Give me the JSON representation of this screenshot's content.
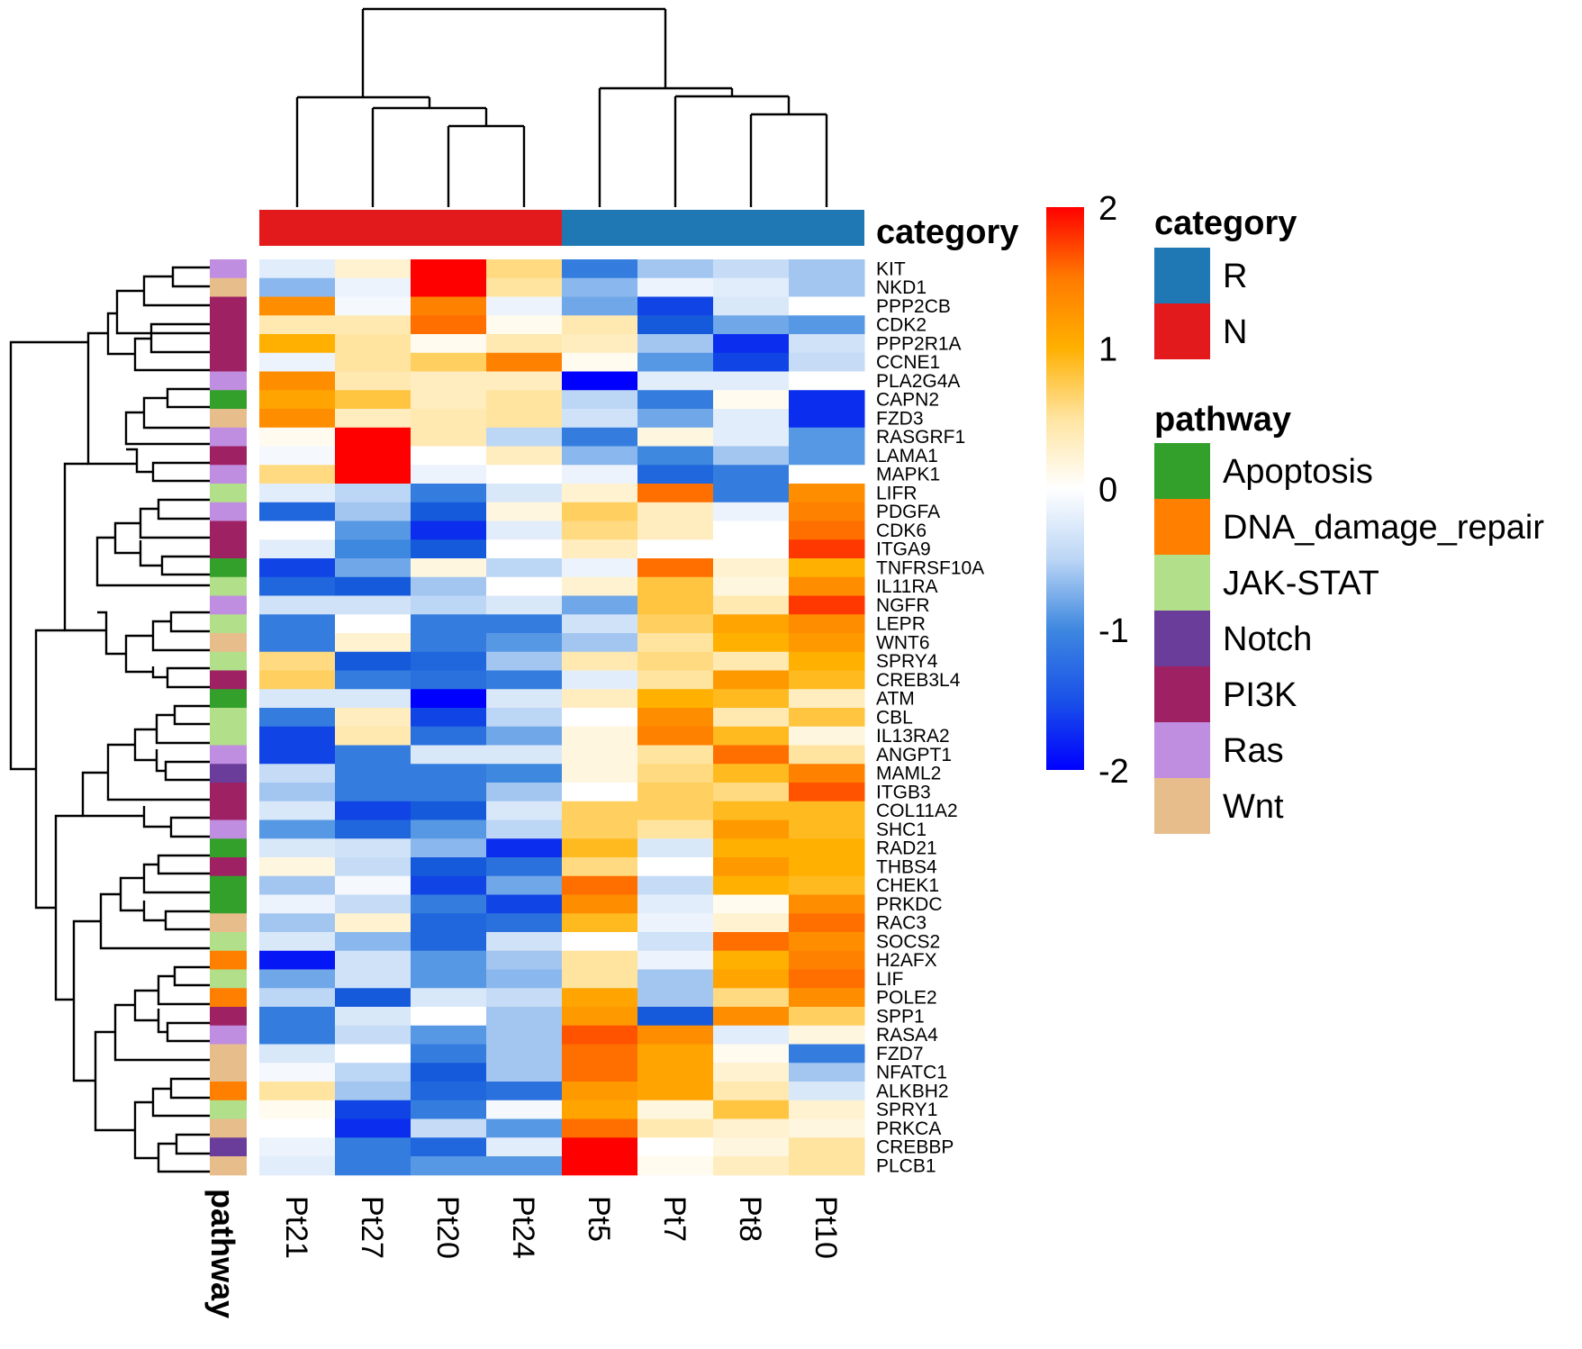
{
  "chart_data": {
    "type": "heatmap",
    "columns": [
      "Pt21",
      "Pt27",
      "Pt20",
      "Pt24",
      "Pt5",
      "Pt7",
      "Pt8",
      "Pt10"
    ],
    "column_categories": [
      "N",
      "N",
      "N",
      "N",
      "R",
      "R",
      "R",
      "R"
    ],
    "rows": [
      "KIT",
      "NKD1",
      "PPP2CB",
      "CDK2",
      "PPP2R1A",
      "CCNE1",
      "PLA2G4A",
      "CAPN2",
      "FZD3",
      "RASGRF1",
      "LAMA1",
      "MAPK1",
      "LIFR",
      "PDGFA",
      "CDK6",
      "ITGA9",
      "TNFRSF10A",
      "IL11RA",
      "NGFR",
      "LEPR",
      "WNT6",
      "SPRY4",
      "CREB3L4",
      "ATM",
      "CBL",
      "IL13RA2",
      "ANGPT1",
      "MAML2",
      "ITGB3",
      "COL11A2",
      "SHC1",
      "RAD21",
      "THBS4",
      "CHEK1",
      "PRKDC",
      "RAC3",
      "SOCS2",
      "H2AFX",
      "LIF",
      "POLE2",
      "SPP1",
      "RASA4",
      "FZD7",
      "NFATC1",
      "ALKBH2",
      "SPRY1",
      "PRKCA",
      "CREBBP",
      "PLCB1"
    ],
    "row_pathways": [
      "Ras",
      "Wnt",
      "PI3K",
      "PI3K",
      "PI3K",
      "PI3K",
      "Ras",
      "Apoptosis",
      "Wnt",
      "Ras",
      "PI3K",
      "Ras",
      "JAK-STAT",
      "Ras",
      "PI3K",
      "PI3K",
      "Apoptosis",
      "JAK-STAT",
      "Ras",
      "JAK-STAT",
      "Wnt",
      "JAK-STAT",
      "PI3K",
      "Apoptosis",
      "JAK-STAT",
      "JAK-STAT",
      "Ras",
      "Notch",
      "PI3K",
      "PI3K",
      "Ras",
      "Apoptosis",
      "PI3K",
      "Apoptosis",
      "Apoptosis",
      "Wnt",
      "JAK-STAT",
      "DNA_damage_repair",
      "JAK-STAT",
      "DNA_damage_repair",
      "PI3K",
      "Ras",
      "Wnt",
      "Wnt",
      "DNA_damage_repair",
      "JAK-STAT",
      "Wnt",
      "Notch",
      "Wnt"
    ],
    "values": [
      [
        -0.3,
        0.3,
        2.0,
        0.7,
        -1.3,
        -0.8,
        -0.6,
        -0.8
      ],
      [
        -0.9,
        -0.2,
        2.0,
        0.6,
        -0.9,
        -0.2,
        -0.3,
        -0.8
      ],
      [
        1.4,
        -0.1,
        1.5,
        -0.2,
        -1.0,
        -1.7,
        -0.4,
        0.0
      ],
      [
        0.5,
        0.5,
        1.6,
        0.1,
        0.5,
        -1.6,
        -1.0,
        -1.1
      ],
      [
        1.1,
        0.6,
        0.1,
        0.5,
        0.4,
        -0.8,
        -1.8,
        -0.5
      ],
      [
        -0.2,
        0.6,
        0.8,
        1.5,
        0.1,
        -1.1,
        -1.7,
        -0.6
      ],
      [
        1.4,
        0.5,
        0.4,
        0.4,
        -2.0,
        -0.3,
        -0.3,
        0.0
      ],
      [
        1.2,
        0.9,
        0.4,
        0.6,
        -0.7,
        -1.3,
        0.1,
        -1.8
      ],
      [
        1.4,
        0.4,
        0.5,
        0.6,
        -0.5,
        -1.0,
        -0.3,
        -1.8
      ],
      [
        0.1,
        2.0,
        0.5,
        -0.7,
        -1.3,
        0.2,
        -0.3,
        -1.1
      ],
      [
        -0.1,
        2.0,
        0.0,
        0.4,
        -0.9,
        -1.2,
        -0.8,
        -1.1
      ],
      [
        0.7,
        2.0,
        -0.2,
        0.0,
        -0.2,
        -1.5,
        -1.3,
        0.0
      ],
      [
        -0.3,
        -0.7,
        -1.3,
        -0.4,
        0.3,
        1.6,
        -1.3,
        1.4
      ],
      [
        -1.5,
        -0.8,
        -1.6,
        0.2,
        0.8,
        0.4,
        -0.2,
        1.5
      ],
      [
        0.0,
        -1.1,
        -1.8,
        -0.3,
        0.7,
        0.4,
        0.0,
        1.6
      ],
      [
        -0.3,
        -1.2,
        -1.6,
        0.0,
        0.4,
        0.0,
        0.0,
        1.8
      ],
      [
        -1.7,
        -1.0,
        0.2,
        -0.7,
        -0.2,
        1.6,
        0.3,
        1.1
      ],
      [
        -1.5,
        -1.6,
        -0.8,
        0.0,
        0.3,
        0.9,
        0.2,
        1.4
      ],
      [
        -0.5,
        -0.5,
        -0.7,
        -0.4,
        -1.0,
        0.9,
        0.5,
        1.8
      ],
      [
        -1.3,
        0.0,
        -1.3,
        -1.3,
        -0.5,
        0.8,
        1.2,
        1.4
      ],
      [
        -1.3,
        0.3,
        -1.3,
        -1.1,
        -0.8,
        0.6,
        1.1,
        1.3
      ],
      [
        0.7,
        -1.6,
        -1.5,
        -0.8,
        0.5,
        0.7,
        0.5,
        1.1
      ],
      [
        0.8,
        -1.3,
        -1.4,
        -1.3,
        -0.3,
        0.6,
        1.3,
        1.0
      ],
      [
        -0.4,
        -0.4,
        -2.0,
        -0.4,
        0.4,
        1.1,
        1.0,
        0.4
      ],
      [
        -1.3,
        0.4,
        -1.7,
        -0.7,
        0.0,
        1.4,
        0.5,
        0.9
      ],
      [
        -1.7,
        0.5,
        -1.4,
        -1.0,
        0.2,
        1.5,
        1.0,
        0.2
      ],
      [
        -1.7,
        -1.3,
        -0.4,
        -0.4,
        0.2,
        0.6,
        1.6,
        0.6
      ],
      [
        -0.6,
        -1.3,
        -1.3,
        -1.2,
        0.2,
        0.7,
        1.0,
        1.5
      ],
      [
        -0.8,
        -1.3,
        -1.3,
        -0.8,
        0.0,
        0.8,
        0.7,
        1.7
      ],
      [
        -0.4,
        -1.7,
        -1.6,
        -0.4,
        0.8,
        0.8,
        1.0,
        1.0
      ],
      [
        -1.1,
        -1.5,
        -1.1,
        -0.7,
        0.8,
        0.6,
        1.3,
        1.0
      ],
      [
        -0.4,
        -0.5,
        -0.9,
        -1.8,
        1.0,
        -0.4,
        1.1,
        1.1
      ],
      [
        0.2,
        -0.6,
        -1.6,
        -1.4,
        0.7,
        0.0,
        1.3,
        1.1
      ],
      [
        -0.8,
        -0.1,
        -1.7,
        -1.0,
        1.6,
        -0.6,
        1.1,
        1.0
      ],
      [
        -0.2,
        -0.6,
        -1.3,
        -1.7,
        1.4,
        -0.3,
        0.1,
        1.4
      ],
      [
        -0.8,
        0.3,
        -1.5,
        -1.4,
        1.0,
        -0.2,
        0.3,
        1.6
      ],
      [
        -0.4,
        -0.9,
        -1.5,
        -0.5,
        0.0,
        -0.5,
        1.6,
        1.4
      ],
      [
        -1.9,
        -0.5,
        -1.1,
        -0.8,
        0.6,
        -0.2,
        1.1,
        1.5
      ],
      [
        -1.0,
        -0.5,
        -1.1,
        -0.9,
        0.6,
        -0.8,
        1.2,
        1.6
      ],
      [
        -0.7,
        -1.6,
        -0.4,
        -0.6,
        1.2,
        -0.8,
        0.7,
        1.4
      ],
      [
        -1.3,
        -0.4,
        0.0,
        -0.8,
        1.3,
        -1.6,
        1.4,
        0.8
      ],
      [
        -1.3,
        -0.6,
        -1.1,
        -0.8,
        1.7,
        1.4,
        -0.3,
        0.2
      ],
      [
        -0.4,
        0.0,
        -1.3,
        -0.8,
        1.6,
        1.2,
        0.1,
        -1.3
      ],
      [
        -0.1,
        -0.7,
        -1.6,
        -0.8,
        1.6,
        1.2,
        0.3,
        -0.8
      ],
      [
        0.6,
        -0.8,
        -1.5,
        -1.4,
        1.3,
        1.2,
        0.5,
        -0.4
      ],
      [
        0.1,
        -1.7,
        -1.3,
        -0.1,
        1.2,
        0.2,
        0.9,
        0.3
      ],
      [
        0.0,
        -1.8,
        -0.6,
        -1.1,
        1.6,
        0.5,
        0.3,
        0.2
      ],
      [
        -0.2,
        -1.3,
        -1.5,
        -0.3,
        2.0,
        0.0,
        0.2,
        0.6
      ],
      [
        -0.3,
        -1.3,
        -1.1,
        -1.1,
        2.0,
        0.1,
        0.4,
        0.6
      ]
    ],
    "color_scale": {
      "min": -2,
      "max": 2,
      "low": "#0000ff",
      "mid": "#ffffff",
      "high": "#ff0000"
    },
    "colorbar_ticks": [
      "2",
      "1",
      "0",
      "-1",
      "-2"
    ],
    "category_legend": {
      "title": "category",
      "items": [
        {
          "label": "R",
          "color": "#1f78b4"
        },
        {
          "label": "N",
          "color": "#e31a1c"
        }
      ]
    },
    "pathway_legend": {
      "title": "pathway",
      "items": [
        {
          "label": "Apoptosis",
          "color": "#33a02c"
        },
        {
          "label": "DNA_damage_repair",
          "color": "#ff7f00"
        },
        {
          "label": "JAK-STAT",
          "color": "#b2df8a"
        },
        {
          "label": "Notch",
          "color": "#6a3d9a"
        },
        {
          "label": "PI3K",
          "color": "#9e2263"
        },
        {
          "label": "Ras",
          "color": "#c08ee0"
        },
        {
          "label": "Wnt",
          "color": "#e8bd8c"
        }
      ]
    },
    "top_annotation_label": "category",
    "side_annotation_label": "pathway"
  }
}
